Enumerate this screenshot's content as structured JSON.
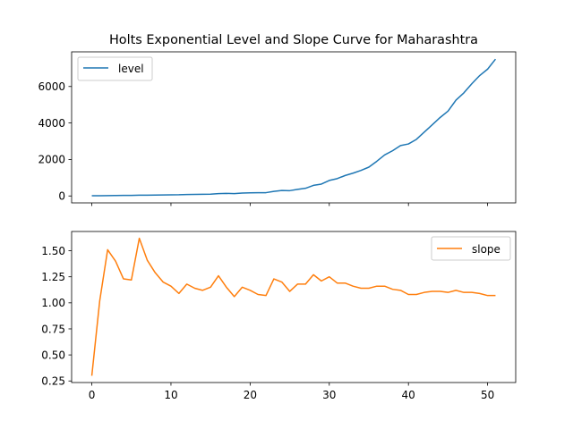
{
  "chart_data": [
    {
      "type": "line",
      "title": "Holts Exponential Level and Slope Curve for Maharashtra",
      "xlabel": "",
      "ylabel": "",
      "xlim": [
        -2.55,
        53.55
      ],
      "ylim": [
        -380,
        7900
      ],
      "y_ticks": [
        0,
        2000,
        4000,
        6000
      ],
      "x_ticks": [
        0,
        10,
        20,
        30,
        40,
        50
      ],
      "show_x_tick_labels": false,
      "grid": false,
      "legend_position": "top-left",
      "series": [
        {
          "name": "level",
          "color": "#1f77b4",
          "x": [
            0,
            1,
            2,
            3,
            4,
            5,
            6,
            7,
            8,
            9,
            10,
            11,
            12,
            13,
            14,
            15,
            16,
            17,
            18,
            19,
            20,
            21,
            22,
            23,
            24,
            25,
            26,
            27,
            28,
            29,
            30,
            31,
            32,
            33,
            34,
            35,
            36,
            37,
            38,
            39,
            40,
            41,
            42,
            43,
            44,
            45,
            46,
            47,
            48,
            49,
            50,
            51
          ],
          "values": [
            10,
            15,
            20,
            25,
            28,
            30,
            40,
            45,
            50,
            55,
            60,
            65,
            80,
            85,
            90,
            100,
            130,
            140,
            130,
            160,
            170,
            175,
            180,
            250,
            300,
            290,
            360,
            420,
            580,
            650,
            850,
            950,
            1120,
            1250,
            1400,
            1580,
            1900,
            2250,
            2480,
            2760,
            2850,
            3100,
            3500,
            3900,
            4300,
            4650,
            5250,
            5650,
            6150,
            6600,
            6950,
            7500
          ]
        },
        {
          "name": "slope",
          "color": "#ff7f0e",
          "x": [
            0,
            1,
            2,
            3,
            4,
            5,
            6,
            7,
            8,
            9,
            10,
            11,
            12,
            13,
            14,
            15,
            16,
            17,
            18,
            19,
            20,
            21,
            22,
            23,
            24,
            25,
            26,
            27,
            28,
            29,
            30,
            31,
            32,
            33,
            34,
            35,
            36,
            37,
            38,
            39,
            40,
            41,
            42,
            43,
            44,
            45,
            46,
            47,
            48,
            49,
            50,
            51
          ],
          "values": [
            0.3,
            1.02,
            1.51,
            1.4,
            1.23,
            1.22,
            1.62,
            1.41,
            1.29,
            1.2,
            1.16,
            1.09,
            1.18,
            1.14,
            1.12,
            1.15,
            1.26,
            1.15,
            1.06,
            1.15,
            1.12,
            1.08,
            1.07,
            1.23,
            1.2,
            1.11,
            1.18,
            1.18,
            1.27,
            1.21,
            1.25,
            1.19,
            1.19,
            1.16,
            1.14,
            1.14,
            1.16,
            1.16,
            1.13,
            1.12,
            1.08,
            1.08,
            1.1,
            1.11,
            1.11,
            1.1,
            1.12,
            1.1,
            1.1,
            1.09,
            1.07,
            1.07
          ]
        }
      ]
    },
    {
      "type": "line",
      "title": "",
      "xlabel": "",
      "ylabel": "",
      "xlim": [
        -2.55,
        53.55
      ],
      "ylim": [
        0.235,
        1.685
      ],
      "y_ticks": [
        0.25,
        0.5,
        0.75,
        1.0,
        1.25,
        1.5
      ],
      "x_ticks": [
        0,
        10,
        20,
        30,
        40,
        50
      ],
      "show_x_tick_labels": true,
      "grid": false,
      "legend_position": "top-right"
    }
  ]
}
